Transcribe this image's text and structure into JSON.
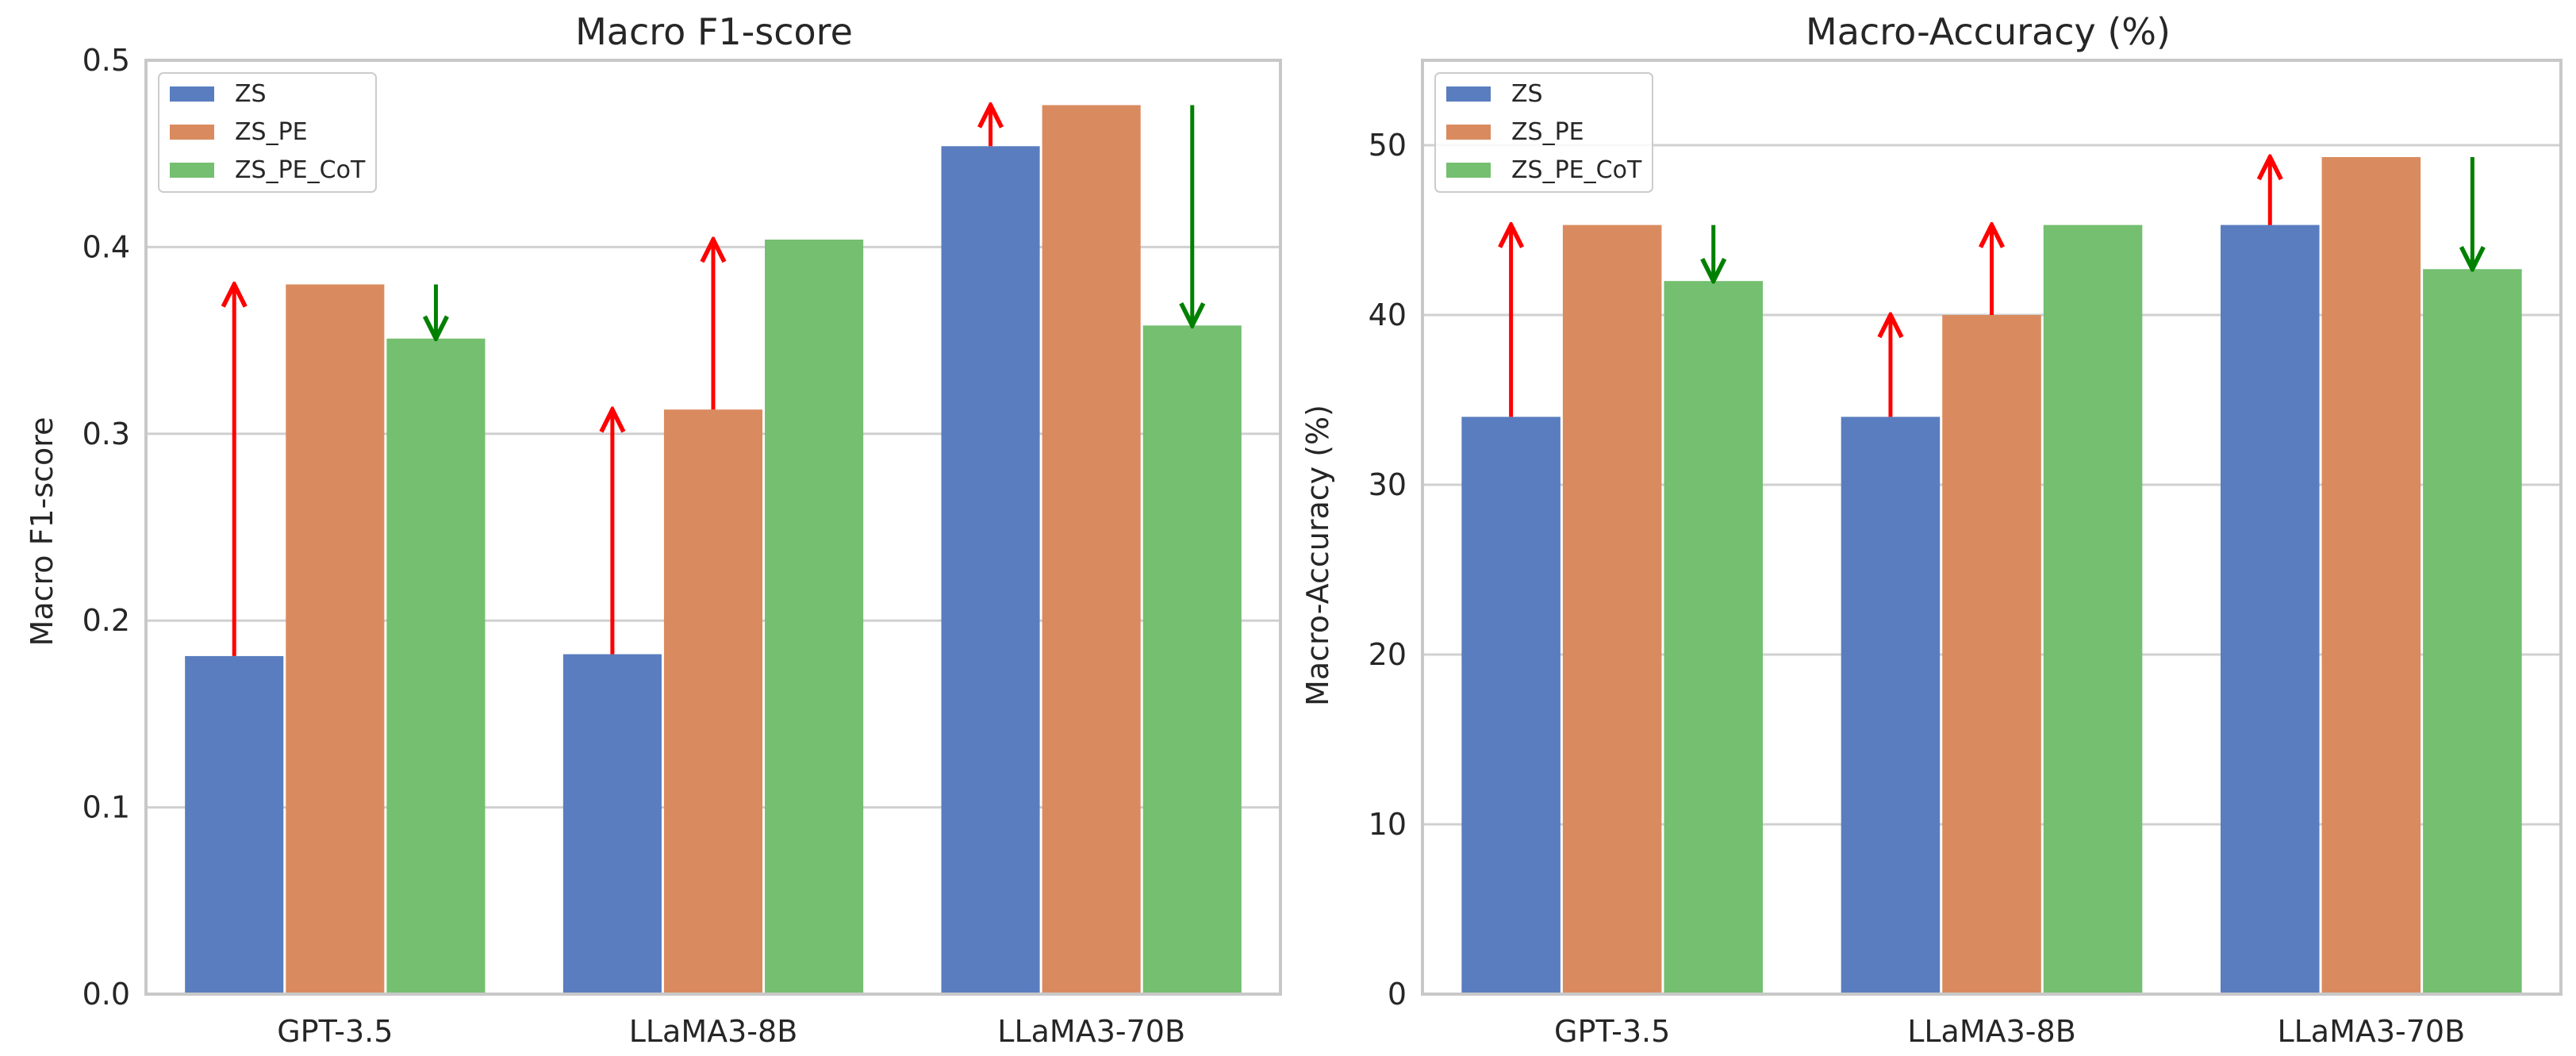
{
  "chart_data": [
    {
      "type": "bar",
      "title": "Macro F1-score",
      "xlabel": "",
      "ylabel": "Macro F1-score",
      "ylim": [
        0,
        0.5
      ],
      "yticks": [
        0.0,
        0.1,
        0.2,
        0.3,
        0.4,
        0.5
      ],
      "ytick_labels": [
        "0.0",
        "0.1",
        "0.2",
        "0.3",
        "0.4",
        "0.5"
      ],
      "grid": true,
      "legend_position": "top-left",
      "categories": [
        "GPT-3.5",
        "LLaMA3-8B",
        "LLaMA3-70B"
      ],
      "series": [
        {
          "name": "ZS",
          "color": "#5a7dbf",
          "values": [
            0.181,
            0.182,
            0.454
          ]
        },
        {
          "name": "ZS_PE",
          "color": "#d98b5f",
          "values": [
            0.38,
            0.313,
            0.476
          ]
        },
        {
          "name": "ZS_PE_CoT",
          "color": "#74bf70",
          "values": [
            0.351,
            0.404,
            0.358
          ]
        }
      ],
      "annotations": [
        {
          "type": "arrow",
          "category": "GPT-3.5",
          "at_series": "ZS",
          "from": 0.181,
          "to": 0.38,
          "direction": "up",
          "color": "#ff0000"
        },
        {
          "type": "arrow",
          "category": "GPT-3.5",
          "at_series": "ZS_PE_CoT",
          "from": 0.38,
          "to": 0.351,
          "direction": "down",
          "color": "#008000"
        },
        {
          "type": "arrow",
          "category": "LLaMA3-8B",
          "at_series": "ZS",
          "from": 0.182,
          "to": 0.313,
          "direction": "up",
          "color": "#ff0000"
        },
        {
          "type": "arrow",
          "category": "LLaMA3-8B",
          "at_series": "ZS_PE",
          "from": 0.313,
          "to": 0.404,
          "direction": "up",
          "color": "#ff0000"
        },
        {
          "type": "arrow",
          "category": "LLaMA3-70B",
          "at_series": "ZS",
          "from": 0.454,
          "to": 0.476,
          "direction": "up",
          "color": "#ff0000"
        },
        {
          "type": "arrow",
          "category": "LLaMA3-70B",
          "at_series": "ZS_PE_CoT",
          "from": 0.476,
          "to": 0.358,
          "direction": "down",
          "color": "#008000"
        }
      ]
    },
    {
      "type": "bar",
      "title": "Macro-Accuracy (%)",
      "xlabel": "",
      "ylabel": "Macro-Accuracy (%)",
      "ylim": [
        0,
        55
      ],
      "yticks": [
        0,
        10,
        20,
        30,
        40,
        50
      ],
      "ytick_labels": [
        "0",
        "10",
        "20",
        "30",
        "40",
        "50"
      ],
      "grid": true,
      "legend_position": "top-left",
      "categories": [
        "GPT-3.5",
        "LLaMA3-8B",
        "LLaMA3-70B"
      ],
      "series": [
        {
          "name": "ZS",
          "color": "#5a7dbf",
          "values": [
            34.0,
            34.0,
            45.3
          ]
        },
        {
          "name": "ZS_PE",
          "color": "#d98b5f",
          "values": [
            45.3,
            40.0,
            49.3
          ]
        },
        {
          "name": "ZS_PE_CoT",
          "color": "#74bf70",
          "values": [
            42.0,
            45.3,
            42.7
          ]
        }
      ],
      "annotations": [
        {
          "type": "arrow",
          "category": "GPT-3.5",
          "at_series": "ZS",
          "from": 34.0,
          "to": 45.3,
          "direction": "up",
          "color": "#ff0000"
        },
        {
          "type": "arrow",
          "category": "GPT-3.5",
          "at_series": "ZS_PE_CoT",
          "from": 45.3,
          "to": 42.0,
          "direction": "down",
          "color": "#008000"
        },
        {
          "type": "arrow",
          "category": "LLaMA3-8B",
          "at_series": "ZS",
          "from": 34.0,
          "to": 40.0,
          "direction": "up",
          "color": "#ff0000"
        },
        {
          "type": "arrow",
          "category": "LLaMA3-8B",
          "at_series": "ZS_PE",
          "from": 40.0,
          "to": 45.3,
          "direction": "up",
          "color": "#ff0000"
        },
        {
          "type": "arrow",
          "category": "LLaMA3-70B",
          "at_series": "ZS",
          "from": 45.3,
          "to": 49.3,
          "direction": "up",
          "color": "#ff0000"
        },
        {
          "type": "arrow",
          "category": "LLaMA3-70B",
          "at_series": "ZS_PE_CoT",
          "from": 49.3,
          "to": 42.7,
          "direction": "down",
          "color": "#008000"
        }
      ]
    }
  ]
}
